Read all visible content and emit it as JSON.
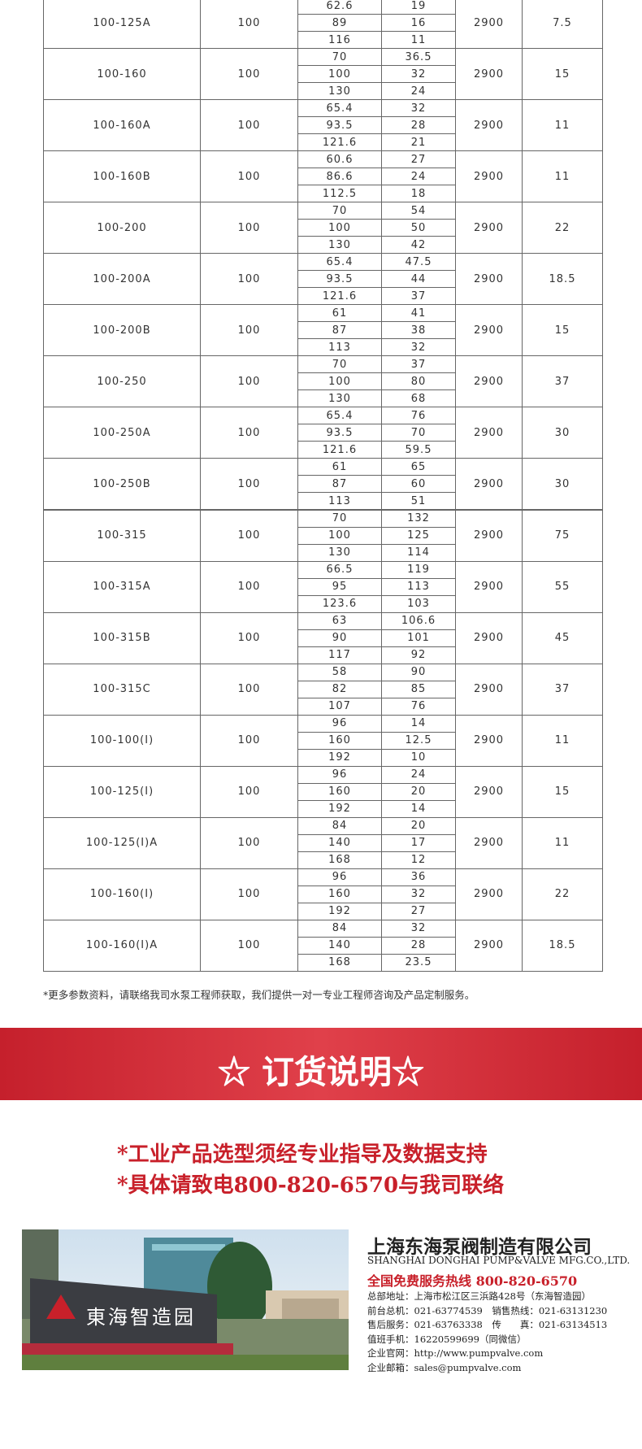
{
  "table": {
    "rows": [
      [
        "100-125A",
        "100",
        [
          "62.6",
          "89",
          "116"
        ],
        [
          "19",
          "16",
          "11"
        ],
        "2900",
        "7.5"
      ],
      [
        "100-160",
        "100",
        [
          "70",
          "100",
          "130"
        ],
        [
          "36.5",
          "32",
          "24"
        ],
        "2900",
        "15"
      ],
      [
        "100-160A",
        "100",
        [
          "65.4",
          "93.5",
          "121.6"
        ],
        [
          "32",
          "28",
          "21"
        ],
        "2900",
        "11"
      ],
      [
        "100-160B",
        "100",
        [
          "60.6",
          "86.6",
          "112.5"
        ],
        [
          "27",
          "24",
          "18"
        ],
        "2900",
        "11"
      ],
      [
        "100-200",
        "100",
        [
          "70",
          "100",
          "130"
        ],
        [
          "54",
          "50",
          "42"
        ],
        "2900",
        "22"
      ],
      [
        "100-200A",
        "100",
        [
          "65.4",
          "93.5",
          "121.6"
        ],
        [
          "47.5",
          "44",
          "37"
        ],
        "2900",
        "18.5"
      ],
      [
        "100-200B",
        "100",
        [
          "61",
          "87",
          "113"
        ],
        [
          "41",
          "38",
          "32"
        ],
        "2900",
        "15"
      ],
      [
        "100-250",
        "100",
        [
          "70",
          "100",
          "130"
        ],
        [
          "37",
          "80",
          "68"
        ],
        "2900",
        "37"
      ],
      [
        "100-250A",
        "100",
        [
          "65.4",
          "93.5",
          "121.6"
        ],
        [
          "76",
          "70",
          "59.5"
        ],
        "2900",
        "30"
      ],
      [
        "100-250B",
        "100",
        [
          "61",
          "87",
          "113"
        ],
        [
          "65",
          "60",
          "51"
        ],
        "2900",
        "30"
      ],
      [
        "100-315",
        "100",
        [
          "70",
          "100",
          "130"
        ],
        [
          "132",
          "125",
          "114"
        ],
        "2900",
        "75"
      ],
      [
        "100-315A",
        "100",
        [
          "66.5",
          "95",
          "123.6"
        ],
        [
          "119",
          "113",
          "103"
        ],
        "2900",
        "55"
      ],
      [
        "100-315B",
        "100",
        [
          "63",
          "90",
          "117"
        ],
        [
          "106.6",
          "101",
          "92"
        ],
        "2900",
        "45"
      ],
      [
        "100-315C",
        "100",
        [
          "58",
          "82",
          "107"
        ],
        [
          "90",
          "85",
          "76"
        ],
        "2900",
        "37"
      ],
      [
        "100-100(I)",
        "100",
        [
          "96",
          "160",
          "192"
        ],
        [
          "14",
          "12.5",
          "10"
        ],
        "2900",
        "11"
      ],
      [
        "100-125(I)",
        "100",
        [
          "96",
          "160",
          "192"
        ],
        [
          "24",
          "20",
          "14"
        ],
        "2900",
        "15"
      ],
      [
        "100-125(I)A",
        "100",
        [
          "84",
          "140",
          "168"
        ],
        [
          "20",
          "17",
          "12"
        ],
        "2900",
        "11"
      ],
      [
        "100-160(I)",
        "100",
        [
          "96",
          "160",
          "192"
        ],
        [
          "36",
          "32",
          "27"
        ],
        "2900",
        "22"
      ],
      [
        "100-160(I)A",
        "100",
        [
          "84",
          "140",
          "168"
        ],
        [
          "32",
          "28",
          "23.5"
        ],
        "2900",
        "18.5"
      ]
    ],
    "note": "*更多参数资料，请联络我司水泵工程师获取，我们提供一对一专业工程师咨询及产品定制服务。"
  },
  "banner": {
    "title": "☆ 订货说明☆"
  },
  "order": {
    "lines": [
      "*工业产品选型须经专业指导及数据支持",
      "*具体请致电800-820-6570与我司联络"
    ]
  },
  "company": {
    "sign": "東海智造园",
    "name": "上海东海泵阀制造有限公司",
    "name_en": "SHANGHAI DONGHAI PUMP&VALVE MFG.CO.,LTD.",
    "hotline": "全国免费服务热线 800-820-6570",
    "details": [
      "总部地址：上海市松江区三浜路428号（东海智造园）",
      "前台总机：021-63774539　销售热线：021-63131230",
      "售后服务：021-63763338　传　　真：021-63134513",
      "值班手机：16220599699（同微信）",
      "企业官网：http://www.pumpvalve.com",
      "企业邮箱：sales@pumpvalve.com"
    ]
  }
}
